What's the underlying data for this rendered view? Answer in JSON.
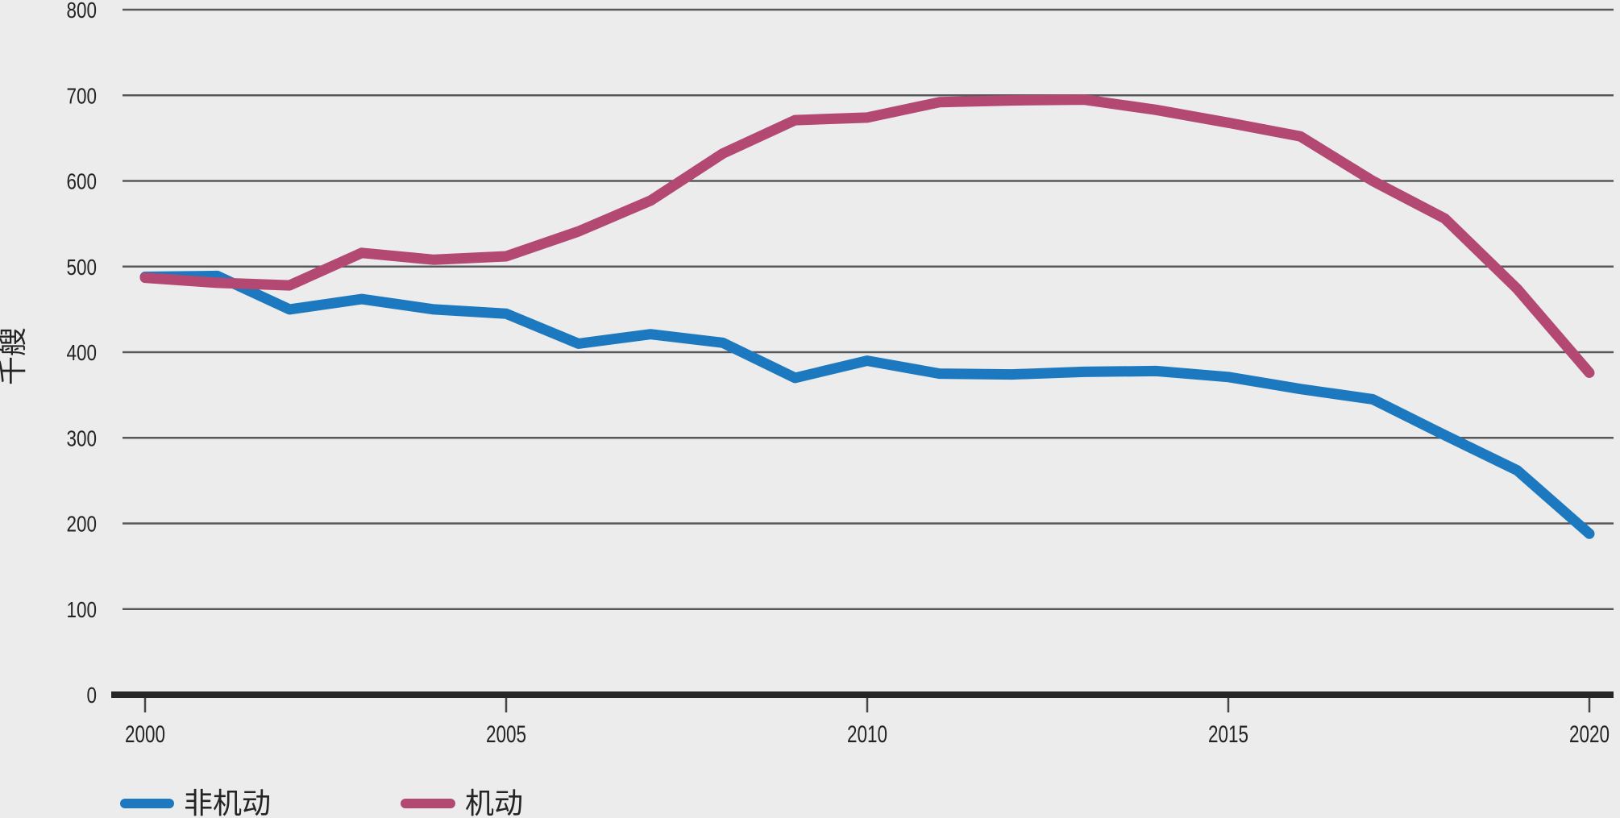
{
  "page": {
    "background": "#ececec"
  },
  "chart_data": {
    "type": "line",
    "title": "",
    "ylabel": "千艘",
    "xlabel": "",
    "x": [
      2000,
      2001,
      2002,
      2003,
      2004,
      2005,
      2006,
      2007,
      2008,
      2009,
      2010,
      2011,
      2012,
      2013,
      2014,
      2015,
      2016,
      2017,
      2018,
      2019,
      2020
    ],
    "x_ticks": [
      2000,
      2005,
      2010,
      2015,
      2020
    ],
    "y_ticks": [
      0,
      100,
      200,
      300,
      400,
      500,
      600,
      700,
      800
    ],
    "xlim": [
      2000,
      2020
    ],
    "ylim": [
      0,
      800
    ],
    "grid": "horizontal-only",
    "legend_position": "bottom-left",
    "series": [
      {
        "name": "非机动",
        "color": "#1d79bf",
        "values": [
          488,
          489,
          450,
          462,
          450,
          445,
          410,
          421,
          411,
          370,
          390,
          375,
          374,
          377,
          378,
          371,
          357,
          345,
          303,
          262,
          188
        ]
      },
      {
        "name": "机动",
        "color": "#b34873",
        "values": [
          487,
          481,
          478,
          516,
          508,
          512,
          541,
          577,
          632,
          671,
          674,
          692,
          694,
          695,
          683,
          668,
          652,
          600,
          556,
          474,
          376
        ]
      }
    ],
    "colors": {
      "axis": "#262626",
      "tick": "#454545",
      "gridline": "#58585a",
      "text": "#242424",
      "background": "#ececec"
    }
  }
}
